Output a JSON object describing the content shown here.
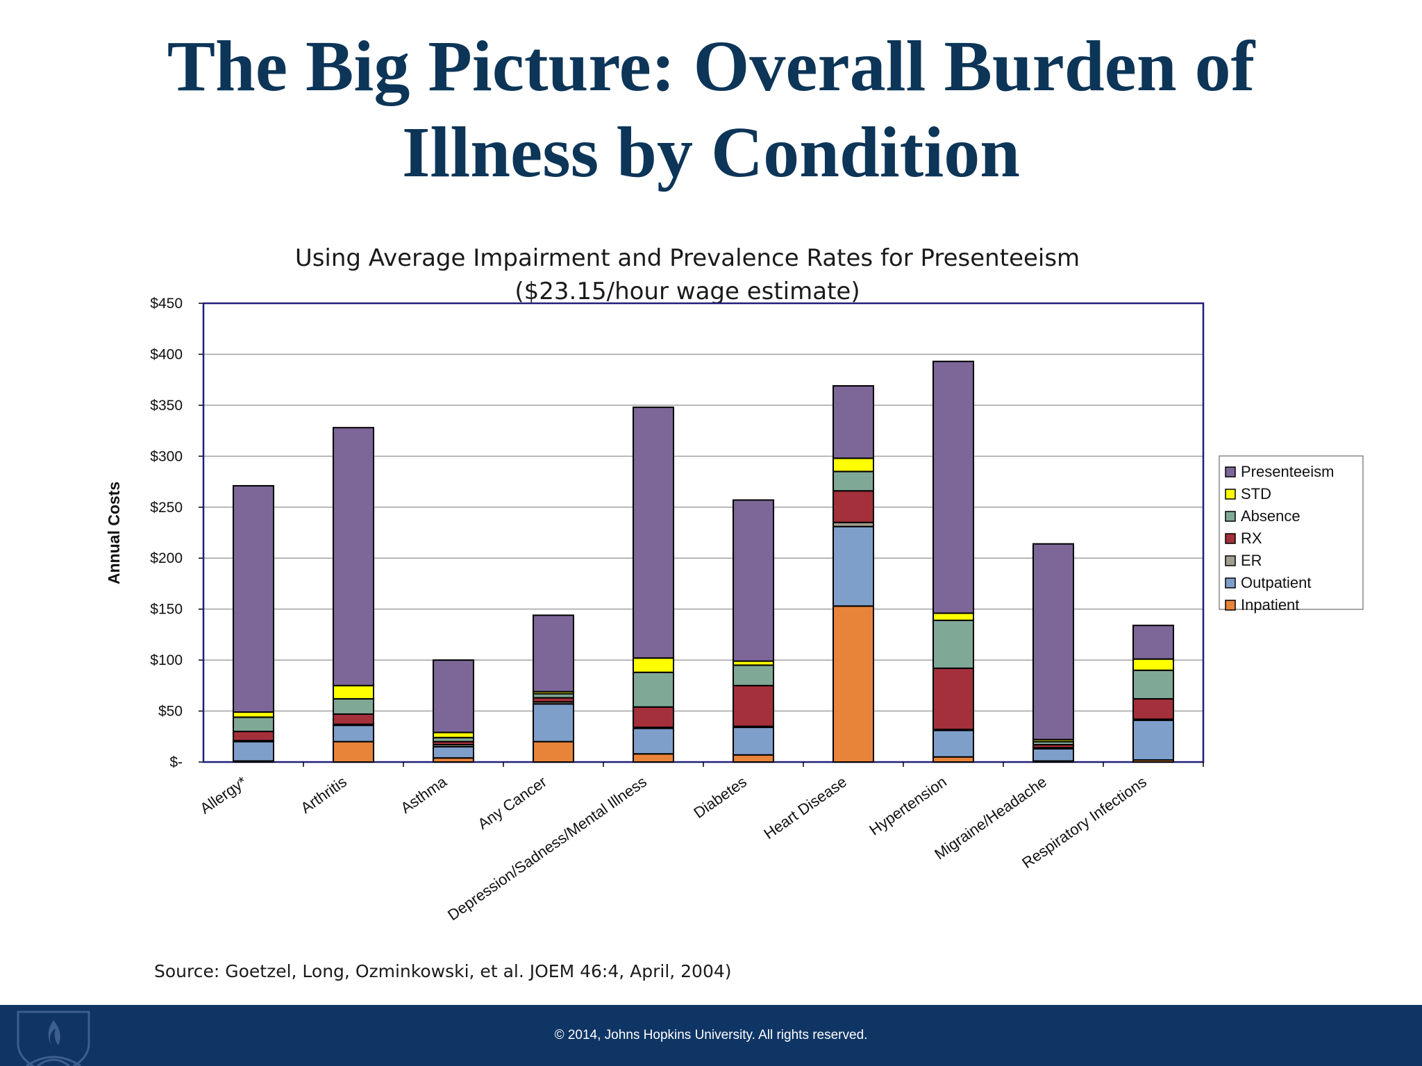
{
  "slide": {
    "title_line1": "The Big Picture: Overall Burden of",
    "title_line2": "Illness by Condition",
    "source": "Source: Goetzel, Long, Ozminkowski, et al. JOEM 46:4, April, 2004)",
    "footer": "© 2014, Johns Hopkins University. All rights reserved."
  },
  "chart_data": {
    "type": "bar",
    "stacked": true,
    "title": "Using Average Impairment and Prevalence Rates for Presenteeism",
    "subtitle": "($23.15/hour wage estimate)",
    "xlabel": "",
    "ylabel": "Annual Costs",
    "ylim": [
      0,
      450
    ],
    "yticks": [
      0,
      50,
      100,
      150,
      200,
      250,
      300,
      350,
      400,
      450
    ],
    "ytick_labels": [
      "$-",
      "$50",
      "$100",
      "$150",
      "$200",
      "$250",
      "$300",
      "$350",
      "$400",
      "$450"
    ],
    "grid": true,
    "legend_position": "right",
    "categories": [
      "Allergy*",
      "Arthritis",
      "Asthma",
      "Any Cancer",
      "Depression/Sadness/Mental Illness",
      "Diabetes",
      "Heart Disease",
      "Hypertension",
      "Migraine/Headache",
      "Respiratory Infections"
    ],
    "series": [
      {
        "name": "Inpatient",
        "color": "#e8833a",
        "values": [
          1,
          20,
          4,
          20,
          8,
          7,
          153,
          5,
          1,
          2
        ]
      },
      {
        "name": "Outpatient",
        "color": "#7f9fcb",
        "values": [
          19,
          16,
          11,
          37,
          25,
          27,
          78,
          26,
          12,
          39
        ]
      },
      {
        "name": "ER",
        "color": "#a39d8f",
        "values": [
          1,
          1,
          2,
          2,
          1,
          1,
          4,
          1,
          1,
          1
        ]
      },
      {
        "name": "RX",
        "color": "#a3303a",
        "values": [
          9,
          10,
          3,
          4,
          20,
          40,
          31,
          60,
          3,
          20
        ]
      },
      {
        "name": "Absence",
        "color": "#80a896",
        "values": [
          14,
          15,
          4,
          4,
          34,
          20,
          19,
          47,
          3,
          28
        ]
      },
      {
        "name": "STD",
        "color": "#ffff00",
        "values": [
          5,
          13,
          5,
          2,
          14,
          4,
          13,
          7,
          2,
          11
        ]
      },
      {
        "name": "Presenteeism",
        "color": "#7d6698",
        "values": [
          222,
          253,
          71,
          75,
          246,
          158,
          71,
          247,
          192,
          33
        ]
      }
    ]
  }
}
